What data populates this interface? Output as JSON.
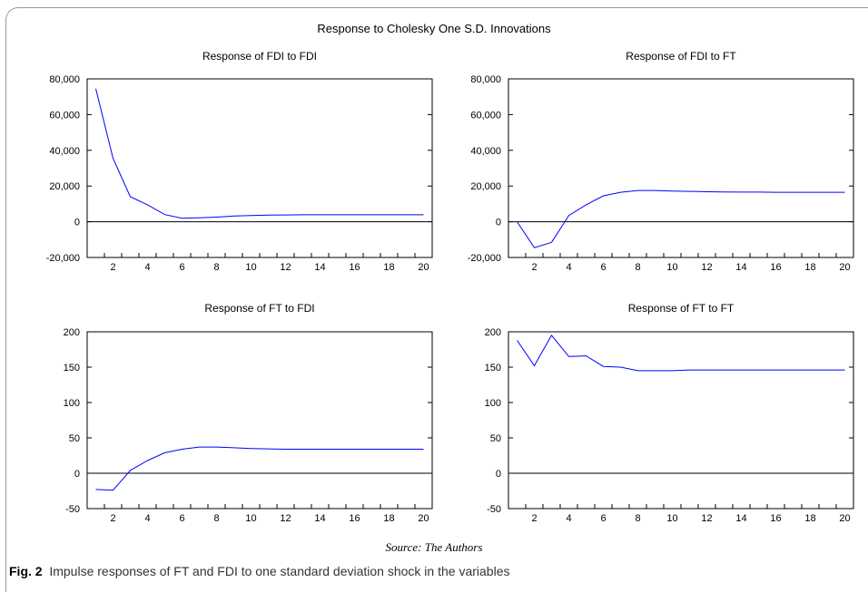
{
  "figure_title": "Response to Cholesky One S.D. Innovations",
  "source_text": "Source: The Authors",
  "caption": {
    "label": "Fig. 2",
    "text": "Impulse responses of FT and FDI to one standard deviation shock in the variables"
  },
  "colors": {
    "line": "#0000ff",
    "axis": "#000000",
    "zero_line": "#000000"
  },
  "chart_data": [
    {
      "type": "line",
      "title": "Response of FDI to FDI",
      "x": [
        1,
        2,
        3,
        4,
        5,
        6,
        7,
        8,
        9,
        10,
        11,
        12,
        13,
        14,
        15,
        16,
        17,
        18,
        19,
        20
      ],
      "xticks": [
        "2",
        "4",
        "6",
        "8",
        "10",
        "12",
        "14",
        "16",
        "18",
        "20"
      ],
      "yticks": [
        "80,000",
        "60,000",
        "40,000",
        "20,000",
        "0",
        "-20,000"
      ],
      "ylim": [
        -20000,
        80000
      ],
      "series": [
        {
          "values": [
            74500,
            35500,
            14000,
            9500,
            4000,
            2000,
            2200,
            2600,
            3200,
            3500,
            3700,
            3800,
            3900,
            3900,
            3900,
            3900,
            3900,
            3900,
            3900,
            3900
          ]
        }
      ]
    },
    {
      "type": "line",
      "title": "Response of FDI to FT",
      "x": [
        1,
        2,
        3,
        4,
        5,
        6,
        7,
        8,
        9,
        10,
        11,
        12,
        13,
        14,
        15,
        16,
        17,
        18,
        19,
        20
      ],
      "xticks": [
        "2",
        "4",
        "6",
        "8",
        "10",
        "12",
        "14",
        "16",
        "18",
        "20"
      ],
      "yticks": [
        "80,000",
        "60,000",
        "40,000",
        "20,000",
        "0",
        "-20,000"
      ],
      "ylim": [
        -20000,
        80000
      ],
      "series": [
        {
          "values": [
            0,
            -14500,
            -11500,
            3500,
            9500,
            14500,
            16500,
            17500,
            17500,
            17200,
            17000,
            16800,
            16700,
            16600,
            16600,
            16500,
            16500,
            16500,
            16500,
            16500
          ]
        }
      ]
    },
    {
      "type": "line",
      "title": "Response of FT to FDI",
      "x": [
        1,
        2,
        3,
        4,
        5,
        6,
        7,
        8,
        9,
        10,
        11,
        12,
        13,
        14,
        15,
        16,
        17,
        18,
        19,
        20
      ],
      "xticks": [
        "2",
        "4",
        "6",
        "8",
        "10",
        "12",
        "14",
        "16",
        "18",
        "20"
      ],
      "yticks": [
        "200",
        "150",
        "100",
        "50",
        "0",
        "-50"
      ],
      "ylim": [
        -50,
        200
      ],
      "series": [
        {
          "values": [
            -23,
            -24,
            4,
            18,
            29,
            34,
            37,
            37,
            36,
            35,
            34.5,
            34,
            34,
            34,
            34,
            34,
            34,
            34,
            34,
            34
          ]
        }
      ]
    },
    {
      "type": "line",
      "title": "Response of FT to FT",
      "x": [
        1,
        2,
        3,
        4,
        5,
        6,
        7,
        8,
        9,
        10,
        11,
        12,
        13,
        14,
        15,
        16,
        17,
        18,
        19,
        20
      ],
      "xticks": [
        "2",
        "4",
        "6",
        "8",
        "10",
        "12",
        "14",
        "16",
        "18",
        "20"
      ],
      "yticks": [
        "200",
        "150",
        "100",
        "50",
        "0",
        "-50"
      ],
      "ylim": [
        -50,
        200
      ],
      "series": [
        {
          "values": [
            188,
            152,
            195,
            165,
            166,
            151,
            150,
            145,
            145,
            145,
            146,
            146,
            146,
            146,
            146,
            146,
            146,
            146,
            146,
            146
          ]
        }
      ]
    }
  ]
}
